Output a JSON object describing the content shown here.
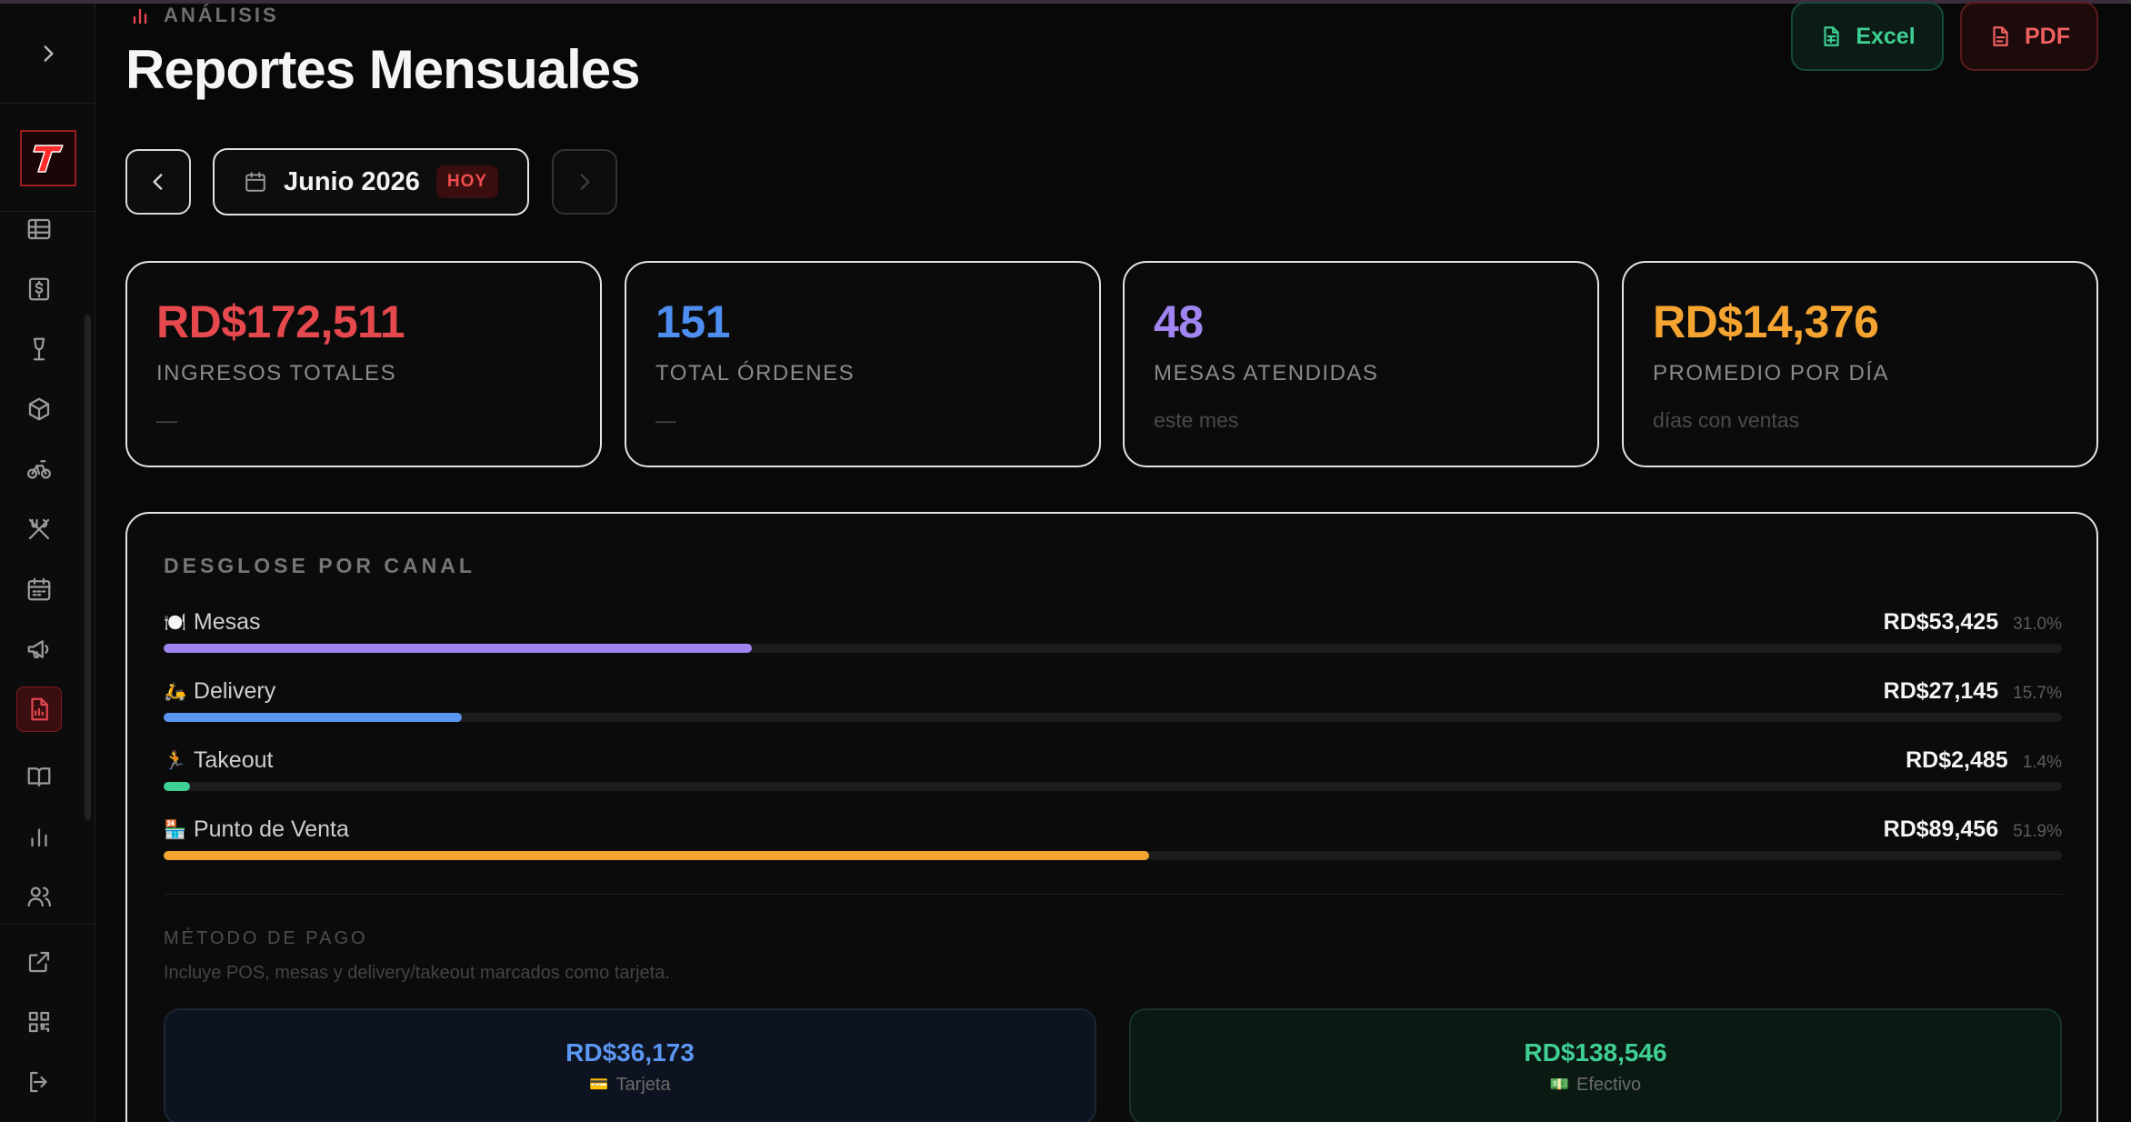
{
  "header": {
    "eyebrow": "ANÁLISIS",
    "title": "Reportes Mensuales",
    "excel_label": "Excel",
    "pdf_label": "PDF"
  },
  "month_nav": {
    "month": "Junio 2026",
    "today_badge": "HOY"
  },
  "stats": [
    {
      "value": "RD$172,511",
      "label": "INGRESOS TOTALES",
      "sub": "—",
      "color": "#e5484d"
    },
    {
      "value": "151",
      "label": "TOTAL ÓRDENES",
      "sub": "—",
      "color": "#4d8ef0"
    },
    {
      "value": "48",
      "label": "MESAS ATENDIDAS",
      "sub": "este mes",
      "color": "#a084f0"
    },
    {
      "value": "RD$14,376",
      "label": "PROMEDIO POR DÍA",
      "sub": "días con ventas",
      "color": "#f5a431"
    }
  ],
  "breakdown": {
    "title": "DESGLOSE POR CANAL",
    "channels": [
      {
        "emoji": "🍽️",
        "label": "Mesas",
        "amount": "RD$53,425",
        "pct": "31.0%",
        "share": 0.31,
        "color": "#a084f0"
      },
      {
        "emoji": "🛵",
        "label": "Delivery",
        "amount": "RD$27,145",
        "pct": "15.7%",
        "share": 0.157,
        "color": "#5b97f2"
      },
      {
        "emoji": "🏃",
        "label": "Takeout",
        "amount": "RD$2,485",
        "pct": "1.4%",
        "share": 0.014,
        "color": "#3fcf92"
      },
      {
        "emoji": "🏪",
        "label": "Punto de Venta",
        "amount": "RD$89,456",
        "pct": "51.9%",
        "share": 0.519,
        "color": "#f5a431"
      }
    ]
  },
  "payment": {
    "title": "MÉTODO DE PAGO",
    "note": "Incluye POS, mesas y delivery/takeout marcados como tarjeta.",
    "methods": [
      {
        "amount": "RD$36,173",
        "emoji": "💳",
        "label": "Tarjeta"
      },
      {
        "amount": "RD$138,546",
        "emoji": "💵",
        "label": "Efectivo"
      }
    ]
  },
  "sidebar": {
    "logo_letter": "T",
    "items": [
      "grid-icon",
      "cash-icon",
      "wine-icon",
      "box-icon",
      "bike-icon",
      "utensils-icon",
      "calendar-icon",
      "megaphone-icon",
      "report-icon",
      "book-icon",
      "bar-chart-icon",
      "users-icon",
      "external-link-icon",
      "qr-icon",
      "logout-icon"
    ],
    "active": "report-icon"
  }
}
